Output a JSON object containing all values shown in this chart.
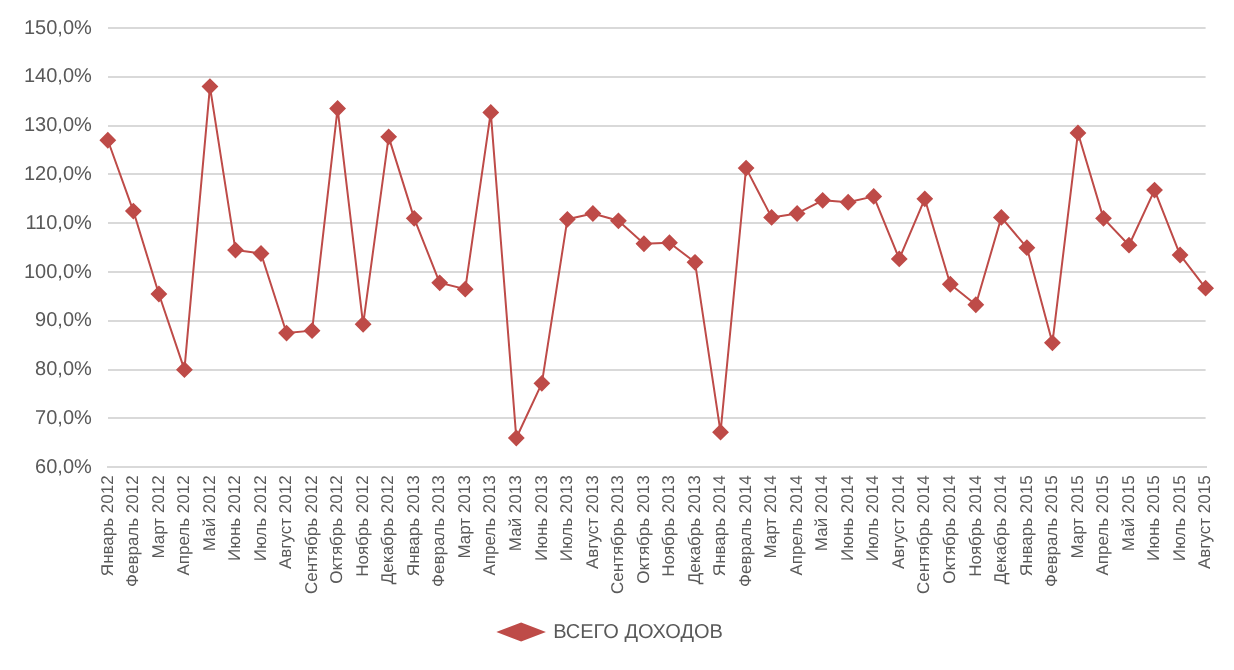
{
  "chart_data": {
    "type": "line",
    "categories": [
      "Январь 2012",
      "Февраль 2012",
      "Март 2012",
      "Апрель 2012",
      "Май 2012",
      "Июнь 2012",
      "Июль 2012",
      "Август 2012",
      "Сентябрь 2012",
      "Октябрь 2012",
      "Ноябрь 2012",
      "Декабрь 2012",
      "Январь 2013",
      "Февраль 2013",
      "Март 2013",
      "Апрель 2013",
      "Май 2013",
      "Июнь 2013",
      "Июль 2013",
      "Август 2013",
      "Сентябрь 2013",
      "Октябрь 2013",
      "Ноябрь 2013",
      "Декабрь 2013",
      "Январь 2014",
      "Февраль 2014",
      "Март 2014",
      "Апрель 2014",
      "Май 2014",
      "Июнь 2014",
      "Июль 2014",
      "Август 2014",
      "Сентябрь 2014",
      "Октябрь 2014",
      "Ноябрь 2014",
      "Декабрь 2014",
      "Январь 2015",
      "Февраль 2015",
      "Март 2015",
      "Апрель 2015",
      "Май 2015",
      "Июнь 2015",
      "Июль 2015",
      "Август 2015"
    ],
    "series": [
      {
        "name": "ВСЕГО ДОХОДОВ",
        "color": "#be4b48",
        "values": [
          127,
          112.5,
          95.5,
          80,
          138,
          104.5,
          103.8,
          87.5,
          88,
          133.5,
          89.3,
          127.7,
          111,
          97.8,
          96.5,
          132.7,
          66,
          77.2,
          110.8,
          112,
          110.5,
          105.8,
          106,
          102,
          67.2,
          121.3,
          111.2,
          112,
          114.7,
          114.3,
          115.5,
          102.7,
          115,
          97.5,
          93.3,
          111.2,
          105,
          85.5,
          128.5,
          111,
          105.5,
          116.8,
          103.5,
          96.7
        ]
      }
    ],
    "ylim": [
      60,
      150
    ],
    "yticks": [
      {
        "value": 60,
        "label": "60,0%"
      },
      {
        "value": 70,
        "label": "70,0%"
      },
      {
        "value": 80,
        "label": "80,0%"
      },
      {
        "value": 90,
        "label": "90,0%"
      },
      {
        "value": 100,
        "label": "100,0%"
      },
      {
        "value": 110,
        "label": "110,0%"
      },
      {
        "value": 120,
        "label": "120,0%"
      },
      {
        "value": 130,
        "label": "130,0%"
      },
      {
        "value": 140,
        "label": "140,0%"
      },
      {
        "value": 150,
        "label": "150,0%"
      }
    ],
    "grid": "y",
    "legend": "bottom",
    "marker": "diamond",
    "line_style": "solid"
  }
}
